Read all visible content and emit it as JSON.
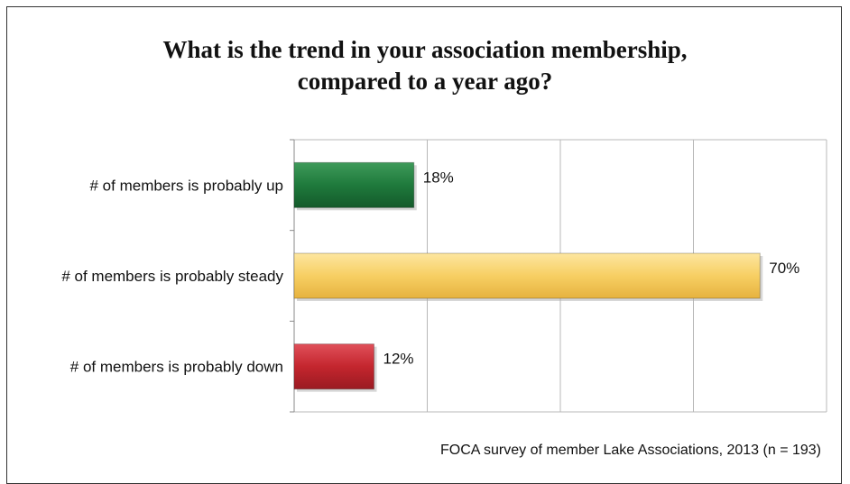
{
  "chart_data": {
    "type": "bar",
    "orientation": "horizontal",
    "title": "What is the trend in your association membership, compared to a year ago?",
    "title_lines": [
      "What is the trend in your association membership,",
      "compared to a year ago?"
    ],
    "categories": [
      "# of members is probably up",
      "# of members is probably steady",
      "# of members is probably down"
    ],
    "values": [
      18,
      70,
      12
    ],
    "value_labels": [
      "18%",
      "70%",
      "12%"
    ],
    "xlim": [
      0,
      80
    ],
    "grid": true,
    "colors": [
      "#1f7a3c",
      "#f7cf63",
      "#c4262e"
    ],
    "source": "FOCA survey of member Lake Associations, 2013 (n = 193)"
  }
}
